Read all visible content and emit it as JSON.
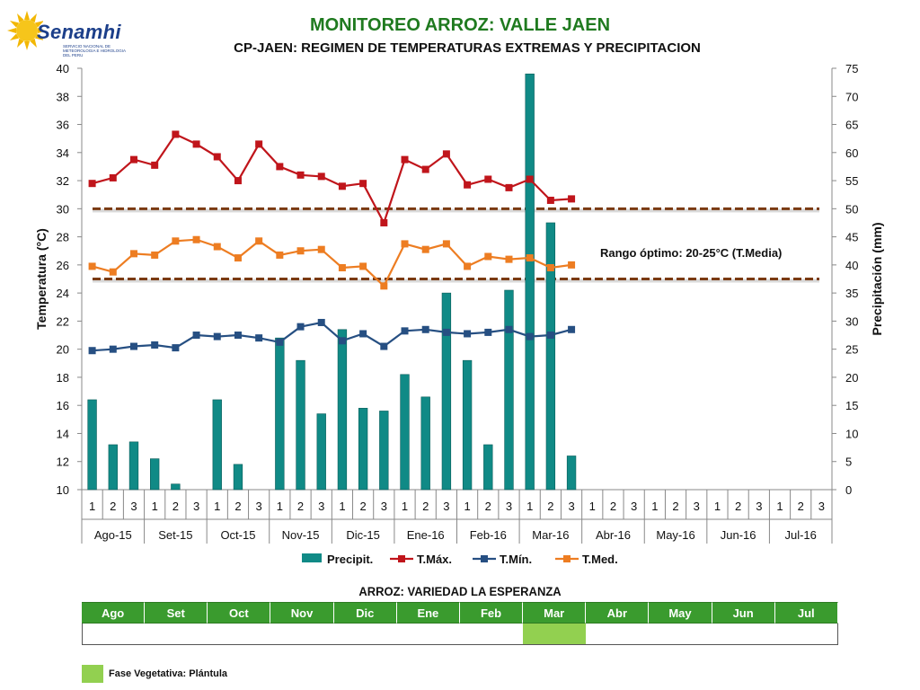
{
  "logo": {
    "text": "Senamhi",
    "subtitle": "SERVICIO NACIONAL DE METEOROLOGIA E HIDROLOGIA DEL PERU"
  },
  "header": {
    "title": "MONITOREO ARROZ: VALLE JAEN",
    "subtitle": "CP-JAEN: REGIMEN DE TEMPERATURAS EXTREMAS Y PRECIPITACION"
  },
  "chart_data": {
    "type": "bar+line",
    "ylabel": "Temperatura (°C)",
    "y2label": "Precipitación (mm)",
    "ylim": [
      10,
      40
    ],
    "y_ticks": [
      10,
      12,
      14,
      16,
      18,
      20,
      22,
      24,
      26,
      28,
      30,
      32,
      34,
      36,
      38,
      40
    ],
    "y2lim": [
      0,
      75
    ],
    "y2_ticks": [
      0,
      5,
      10,
      15,
      20,
      25,
      30,
      35,
      40,
      45,
      50,
      55,
      60,
      65,
      70,
      75
    ],
    "months": [
      "Ago-15",
      "Set-15",
      "Oct-15",
      "Nov-15",
      "Dic-15",
      "Ene-16",
      "Feb-16",
      "Mar-16",
      "Abr-16",
      "May-16",
      "Jun-16",
      "Jul-16"
    ],
    "dekads": [
      "1",
      "2",
      "3"
    ],
    "series": [
      {
        "name": "Precipit.",
        "type": "bar",
        "axis": "right",
        "color": "#108a86",
        "values": [
          16,
          8,
          8.5,
          5.5,
          1,
          0,
          16,
          4.5,
          0,
          27,
          23,
          13.5,
          28.5,
          14.5,
          14,
          20.5,
          16.5,
          35,
          23,
          8,
          35.5,
          74,
          47.5,
          6,
          null,
          null,
          null,
          null,
          null,
          null,
          null,
          null,
          null,
          null,
          null,
          null
        ]
      },
      {
        "name": "T.Máx.",
        "type": "line",
        "axis": "left",
        "color": "#c0151b",
        "values": [
          31.8,
          32.2,
          33.5,
          33.1,
          35.3,
          34.6,
          33.7,
          32.0,
          34.6,
          33.0,
          32.4,
          32.3,
          31.6,
          31.8,
          29.0,
          33.5,
          32.8,
          33.9,
          31.7,
          32.1,
          31.5,
          32.1,
          30.6,
          30.7,
          null,
          null,
          null,
          null,
          null,
          null,
          null,
          null,
          null,
          null,
          null,
          null
        ]
      },
      {
        "name": "T.Mín.",
        "type": "line",
        "axis": "left",
        "color": "#264f82",
        "values": [
          19.9,
          20.0,
          20.2,
          20.3,
          20.1,
          21.0,
          20.9,
          21.0,
          20.8,
          20.5,
          21.6,
          21.9,
          20.6,
          21.1,
          20.2,
          21.3,
          21.4,
          21.2,
          21.1,
          21.2,
          21.4,
          20.9,
          21.0,
          21.4,
          null,
          null,
          null,
          null,
          null,
          null,
          null,
          null,
          null,
          null,
          null,
          null
        ]
      },
      {
        "name": "T.Med.",
        "type": "line",
        "axis": "left",
        "color": "#ed7d22",
        "values": [
          25.9,
          25.5,
          26.8,
          26.7,
          27.7,
          27.8,
          27.3,
          26.5,
          27.7,
          26.7,
          27.0,
          27.1,
          25.8,
          25.9,
          24.5,
          27.5,
          27.1,
          27.5,
          25.9,
          26.6,
          26.4,
          26.5,
          25.8,
          26.0,
          null,
          null,
          null,
          null,
          null,
          null,
          null,
          null,
          null,
          null,
          null,
          null
        ]
      }
    ],
    "reference_lines": [
      25,
      30
    ],
    "annotation": "Rango óptimo: 20-25°C (T.Media)"
  },
  "legend": [
    "Precipit.",
    "T.Máx.",
    "T.Mín.",
    "T.Med."
  ],
  "gantt": {
    "title": "ARROZ: VARIEDAD LA ESPERANZA",
    "months": [
      "Ago",
      "Set",
      "Oct",
      "Nov",
      "Dic",
      "Ene",
      "Feb",
      "Mar",
      "Abr",
      "May",
      "Jun",
      "Jul"
    ],
    "highlight_color": "#92d050",
    "active": [
      false,
      false,
      false,
      false,
      false,
      false,
      false,
      true,
      false,
      false,
      false,
      false
    ]
  },
  "phase_legend": {
    "label": "Fase Vegetativa: Plántula",
    "color": "#92d050"
  }
}
